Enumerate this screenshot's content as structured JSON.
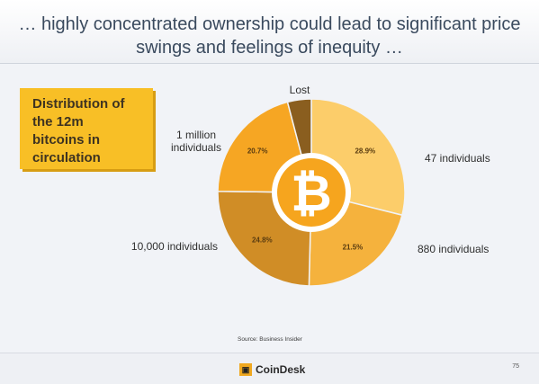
{
  "header": {
    "title_line1": "… highly concentrated ownership could lead to significant price",
    "title_line2": "swings and feelings of inequity …"
  },
  "callout": {
    "lines": [
      "Distribution of",
      "the 12m",
      "bitcoins in",
      "circulation"
    ]
  },
  "chart_data": {
    "type": "pie",
    "title": "",
    "slices": [
      {
        "label": "47 individuals",
        "value": 28.9,
        "value_label": "28.9%",
        "color": "#fccd6a"
      },
      {
        "label": "880 individuals",
        "value": 21.5,
        "value_label": "21.5%",
        "color": "#f5b23d"
      },
      {
        "label": "10,000 individuals",
        "value": 24.8,
        "value_label": "24.8%",
        "color": "#d08d26"
      },
      {
        "label": "1 million individuals",
        "value": 20.7,
        "value_label": "20.7%",
        "color": "#f6a623"
      },
      {
        "label": "Lost",
        "value": 4.1,
        "value_label": "",
        "color": "#8a5e1f"
      }
    ],
    "center_icon": "bitcoin-icon"
  },
  "source": "Source: Business Insider",
  "footer": {
    "brand": "CoinDesk",
    "logo_glyph": "▣",
    "page": "75"
  }
}
